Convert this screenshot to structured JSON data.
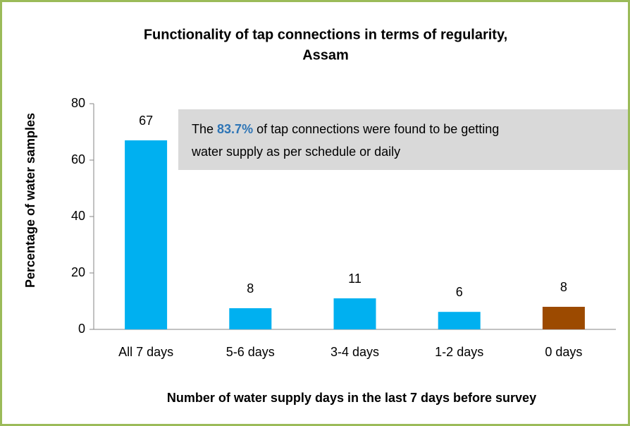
{
  "chart_data": {
    "type": "bar",
    "title": [
      "Functionality of tap connections in terms of regularity,",
      "Assam"
    ],
    "x_label": "Number of water supply days in the last 7 days before survey",
    "y_label": "Percentage of water samples",
    "categories": [
      "All 7 days",
      "5-6 days",
      "3-4 days",
      "1-2 days",
      "0 days"
    ],
    "values": [
      67,
      7.5,
      11,
      6.2,
      8
    ],
    "value_labels": [
      "67",
      "8",
      "11",
      "6",
      "8"
    ],
    "colors": [
      "#00b0f0",
      "#00b0f0",
      "#00b0f0",
      "#00b0f0",
      "#9c4a00"
    ],
    "ylim": [
      0,
      80
    ],
    "yticks": [
      0,
      20,
      40,
      60,
      80
    ],
    "annotation": [
      [
        "The ",
        "83.7%",
        " of tap connections were found to be getting"
      ],
      [
        "water supply as per schedule or daily"
      ]
    ],
    "annotation_highlight_color": "#2e75b6",
    "annotation_box_color": "#d9d9d9"
  }
}
